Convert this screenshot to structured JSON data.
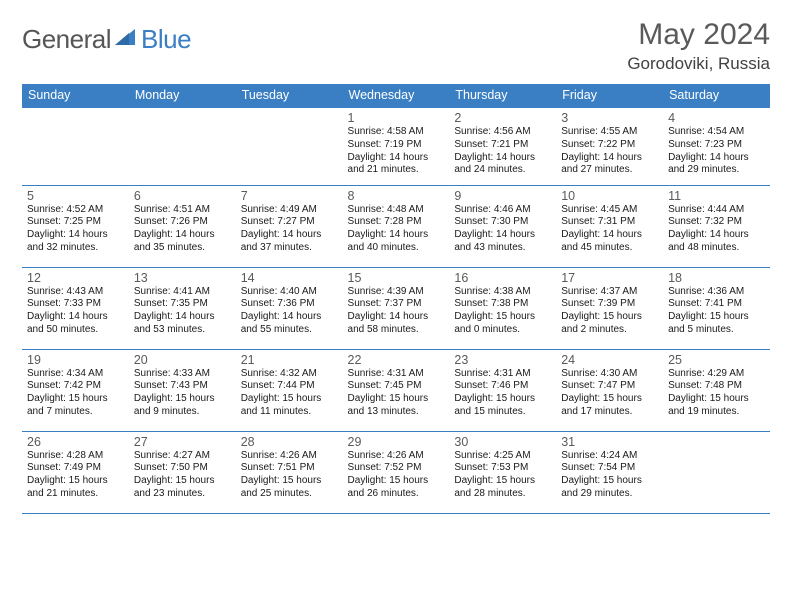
{
  "brand": {
    "part1": "General",
    "part2": "Blue",
    "accent_color": "#3a7fc4",
    "text_color": "#565656"
  },
  "header": {
    "title": "May 2024",
    "location": "Gorodoviki, Russia"
  },
  "calendar": {
    "columns": [
      "Sunday",
      "Monday",
      "Tuesday",
      "Wednesday",
      "Thursday",
      "Friday",
      "Saturday"
    ],
    "header_bg": "#3a7fc4",
    "header_fg": "#ffffff",
    "border_color": "#3a7fc4",
    "cell_font_size_pt": 10,
    "rows": [
      [
        null,
        null,
        null,
        {
          "d": "1",
          "sr": "4:58 AM",
          "ss": "7:19 PM",
          "dl": "14 hours and 21 minutes."
        },
        {
          "d": "2",
          "sr": "4:56 AM",
          "ss": "7:21 PM",
          "dl": "14 hours and 24 minutes."
        },
        {
          "d": "3",
          "sr": "4:55 AM",
          "ss": "7:22 PM",
          "dl": "14 hours and 27 minutes."
        },
        {
          "d": "4",
          "sr": "4:54 AM",
          "ss": "7:23 PM",
          "dl": "14 hours and 29 minutes."
        }
      ],
      [
        {
          "d": "5",
          "sr": "4:52 AM",
          "ss": "7:25 PM",
          "dl": "14 hours and 32 minutes."
        },
        {
          "d": "6",
          "sr": "4:51 AM",
          "ss": "7:26 PM",
          "dl": "14 hours and 35 minutes."
        },
        {
          "d": "7",
          "sr": "4:49 AM",
          "ss": "7:27 PM",
          "dl": "14 hours and 37 minutes."
        },
        {
          "d": "8",
          "sr": "4:48 AM",
          "ss": "7:28 PM",
          "dl": "14 hours and 40 minutes."
        },
        {
          "d": "9",
          "sr": "4:46 AM",
          "ss": "7:30 PM",
          "dl": "14 hours and 43 minutes."
        },
        {
          "d": "10",
          "sr": "4:45 AM",
          "ss": "7:31 PM",
          "dl": "14 hours and 45 minutes."
        },
        {
          "d": "11",
          "sr": "4:44 AM",
          "ss": "7:32 PM",
          "dl": "14 hours and 48 minutes."
        }
      ],
      [
        {
          "d": "12",
          "sr": "4:43 AM",
          "ss": "7:33 PM",
          "dl": "14 hours and 50 minutes."
        },
        {
          "d": "13",
          "sr": "4:41 AM",
          "ss": "7:35 PM",
          "dl": "14 hours and 53 minutes."
        },
        {
          "d": "14",
          "sr": "4:40 AM",
          "ss": "7:36 PM",
          "dl": "14 hours and 55 minutes."
        },
        {
          "d": "15",
          "sr": "4:39 AM",
          "ss": "7:37 PM",
          "dl": "14 hours and 58 minutes."
        },
        {
          "d": "16",
          "sr": "4:38 AM",
          "ss": "7:38 PM",
          "dl": "15 hours and 0 minutes."
        },
        {
          "d": "17",
          "sr": "4:37 AM",
          "ss": "7:39 PM",
          "dl": "15 hours and 2 minutes."
        },
        {
          "d": "18",
          "sr": "4:36 AM",
          "ss": "7:41 PM",
          "dl": "15 hours and 5 minutes."
        }
      ],
      [
        {
          "d": "19",
          "sr": "4:34 AM",
          "ss": "7:42 PM",
          "dl": "15 hours and 7 minutes."
        },
        {
          "d": "20",
          "sr": "4:33 AM",
          "ss": "7:43 PM",
          "dl": "15 hours and 9 minutes."
        },
        {
          "d": "21",
          "sr": "4:32 AM",
          "ss": "7:44 PM",
          "dl": "15 hours and 11 minutes."
        },
        {
          "d": "22",
          "sr": "4:31 AM",
          "ss": "7:45 PM",
          "dl": "15 hours and 13 minutes."
        },
        {
          "d": "23",
          "sr": "4:31 AM",
          "ss": "7:46 PM",
          "dl": "15 hours and 15 minutes."
        },
        {
          "d": "24",
          "sr": "4:30 AM",
          "ss": "7:47 PM",
          "dl": "15 hours and 17 minutes."
        },
        {
          "d": "25",
          "sr": "4:29 AM",
          "ss": "7:48 PM",
          "dl": "15 hours and 19 minutes."
        }
      ],
      [
        {
          "d": "26",
          "sr": "4:28 AM",
          "ss": "7:49 PM",
          "dl": "15 hours and 21 minutes."
        },
        {
          "d": "27",
          "sr": "4:27 AM",
          "ss": "7:50 PM",
          "dl": "15 hours and 23 minutes."
        },
        {
          "d": "28",
          "sr": "4:26 AM",
          "ss": "7:51 PM",
          "dl": "15 hours and 25 minutes."
        },
        {
          "d": "29",
          "sr": "4:26 AM",
          "ss": "7:52 PM",
          "dl": "15 hours and 26 minutes."
        },
        {
          "d": "30",
          "sr": "4:25 AM",
          "ss": "7:53 PM",
          "dl": "15 hours and 28 minutes."
        },
        {
          "d": "31",
          "sr": "4:24 AM",
          "ss": "7:54 PM",
          "dl": "15 hours and 29 minutes."
        },
        null
      ]
    ],
    "labels": {
      "sunrise": "Sunrise:",
      "sunset": "Sunset:",
      "daylight": "Daylight:"
    }
  }
}
